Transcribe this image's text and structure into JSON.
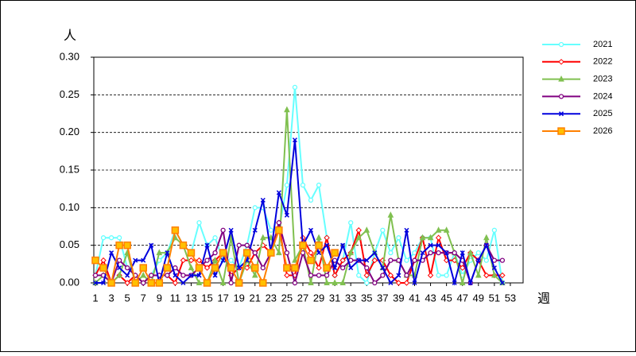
{
  "chart_data": {
    "type": "line",
    "y_label": "人",
    "x_label": "週",
    "x": [
      1,
      2,
      3,
      4,
      5,
      6,
      7,
      8,
      9,
      10,
      11,
      12,
      13,
      14,
      15,
      16,
      17,
      18,
      19,
      20,
      21,
      22,
      23,
      24,
      25,
      26,
      27,
      28,
      29,
      30,
      31,
      32,
      33,
      34,
      35,
      36,
      37,
      38,
      39,
      40,
      41,
      42,
      43,
      44,
      45,
      46,
      47,
      48,
      49,
      50,
      51,
      52
    ],
    "xlim": [
      0.8,
      54.6
    ],
    "xticks": [
      1,
      3,
      5,
      7,
      9,
      11,
      13,
      15,
      17,
      19,
      21,
      23,
      25,
      27,
      29,
      31,
      33,
      35,
      37,
      39,
      41,
      43,
      45,
      47,
      49,
      51,
      53
    ],
    "ylim": [
      0,
      0.3
    ],
    "yticks": [
      {
        "value": 0,
        "label": "0.00"
      },
      0.05,
      {
        "value": 0.1,
        "label": "0.10"
      },
      0.15,
      {
        "value": 0.2,
        "label": "0.20"
      },
      0.25,
      {
        "value": 0.3,
        "label": "0.30"
      }
    ],
    "grid": true,
    "legend": "right",
    "series": [
      {
        "name": "2021",
        "color": "#66ffff",
        "marker": "circle",
        "values": [
          0.01,
          0.06,
          0.06,
          0.06,
          0.02,
          0.01,
          0,
          0.01,
          0.03,
          0.04,
          0.07,
          0.05,
          0.04,
          0.08,
          0.05,
          0.06,
          0.03,
          0.03,
          0.02,
          0.05,
          0.1,
          0.1,
          0.07,
          0.07,
          0.13,
          0.26,
          0.13,
          0.11,
          0.13,
          0.06,
          0.01,
          0.03,
          0.08,
          0.01,
          0,
          0.04,
          0.07,
          0.04,
          0.06,
          0.03,
          0.04,
          0.06,
          0.06,
          0.01,
          0.01,
          0.04,
          0.01,
          0.03,
          0.04,
          0.03,
          0.07,
          0
        ]
      },
      {
        "name": "2022",
        "color": "#ff0000",
        "marker": "diamond",
        "values": [
          0.01,
          0.03,
          0,
          0.01,
          0,
          0.01,
          0,
          0.01,
          0.01,
          0.01,
          0,
          0.03,
          0.03,
          0.03,
          0.02,
          0.03,
          0.04,
          0.01,
          0.02,
          0.02,
          0.04,
          0.05,
          0.04,
          0.08,
          0.01,
          0.01,
          0.06,
          0.04,
          0.02,
          0.06,
          0.01,
          0.03,
          0.04,
          0.07,
          0.01,
          0.03,
          0.03,
          0.01,
          0,
          0,
          0.03,
          0.06,
          0.01,
          0.06,
          0.03,
          0.03,
          0.02,
          0.04,
          0.03,
          0.01,
          0.01,
          0.01
        ]
      },
      {
        "name": "2023",
        "color": "#80c050",
        "marker": "triangle",
        "values": [
          0,
          0.01,
          0,
          0.01,
          0.04,
          0,
          0.01,
          0,
          0.04,
          0.04,
          0.06,
          0.05,
          0.02,
          0,
          0,
          0.03,
          0,
          0.06,
          0,
          0.03,
          0.01,
          0.06,
          0.06,
          0.04,
          0.23,
          0.03,
          0.05,
          0,
          0.06,
          0,
          0,
          0,
          0.04,
          0.06,
          0.07,
          0.04,
          0.02,
          0.09,
          0.03,
          0.01,
          0.01,
          0.06,
          0.06,
          0.07,
          0.07,
          0.04,
          0,
          0.04,
          0.01,
          0.06,
          0.01,
          0
        ]
      },
      {
        "name": "2024",
        "color": "#800080",
        "marker": "circle",
        "values": [
          0.01,
          0.01,
          0,
          0.03,
          0.02,
          0.01,
          0,
          0.01,
          0.01,
          0.01,
          0.02,
          0.01,
          0.01,
          0.02,
          0.03,
          0.04,
          0.07,
          0,
          0.05,
          0.05,
          0.04,
          0.02,
          0.04,
          0.08,
          0.04,
          0,
          0.04,
          0.01,
          0.01,
          0.01,
          0.03,
          0.02,
          0.03,
          0.03,
          0.02,
          0,
          0.01,
          0.03,
          0.03,
          0.01,
          0.03,
          0.03,
          0.04,
          0.04,
          0.04,
          0.04,
          0.03,
          0,
          0.03,
          0.05,
          0.03,
          0.03
        ]
      },
      {
        "name": "2025",
        "color": "#0000dd",
        "marker": "cross",
        "values": [
          0,
          0,
          0.04,
          0.02,
          0.01,
          0.03,
          0.03,
          0.05,
          0,
          0.04,
          0.01,
          0,
          0.01,
          0.01,
          0.05,
          0.01,
          0.03,
          0.07,
          0.02,
          0.03,
          0.07,
          0.11,
          0.04,
          0.12,
          0.09,
          0.19,
          0.05,
          0.07,
          0.04,
          0.05,
          0.02,
          0.05,
          0.02,
          0.03,
          0.03,
          0.04,
          0.02,
          0,
          0.01,
          0.07,
          0,
          0.04,
          0.05,
          0.05,
          0.04,
          0,
          0.04,
          0,
          0.03,
          0.05,
          0.02,
          0
        ]
      },
      {
        "name": "2026",
        "color": "#ff8000",
        "marker": "square",
        "values": [
          0.03,
          0.02,
          0,
          0.05,
          0.05,
          0,
          0.02,
          0,
          0,
          0.02,
          0.07,
          0.05,
          0.04,
          0.02,
          0,
          0.02,
          0.04,
          0.02,
          0,
          0.04,
          0.02,
          0,
          0.04,
          0.07,
          0.02,
          0.02,
          0.05,
          0.03,
          0.05,
          0.02,
          0.04,
          null,
          null,
          null,
          null,
          null,
          null,
          null,
          null,
          null,
          null,
          null,
          null,
          null,
          null,
          null,
          null,
          null,
          null,
          null,
          null,
          null
        ]
      }
    ]
  }
}
